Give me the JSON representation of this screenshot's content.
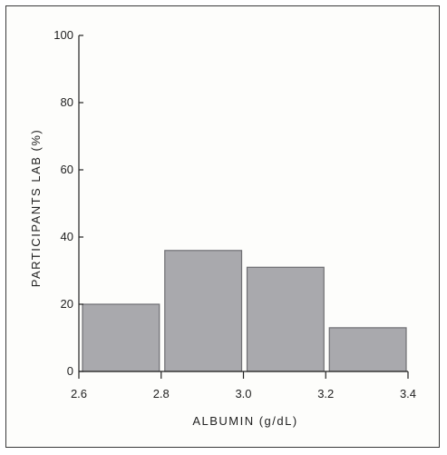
{
  "chart_data": {
    "type": "bar",
    "histogram": true,
    "bins": [
      [
        2.6,
        2.8
      ],
      [
        2.8,
        3.0
      ],
      [
        3.0,
        3.2
      ],
      [
        3.2,
        3.4
      ]
    ],
    "values": [
      20,
      36,
      31,
      13
    ],
    "xlabel": "ALBUMIN (g/dL)",
    "ylabel": "PARTICIPANTS LAB (%)",
    "xticks": [
      "2.6",
      "2.8",
      "3.0",
      "3.2",
      "3.4"
    ],
    "yticks": [
      "0",
      "20",
      "40",
      "60",
      "80",
      "100"
    ],
    "xlim": [
      2.6,
      3.4
    ],
    "ylim": [
      0,
      100
    ],
    "grid": false,
    "bar_color": "#a9a9ad",
    "bar_edge_color": "#6e6e72"
  }
}
